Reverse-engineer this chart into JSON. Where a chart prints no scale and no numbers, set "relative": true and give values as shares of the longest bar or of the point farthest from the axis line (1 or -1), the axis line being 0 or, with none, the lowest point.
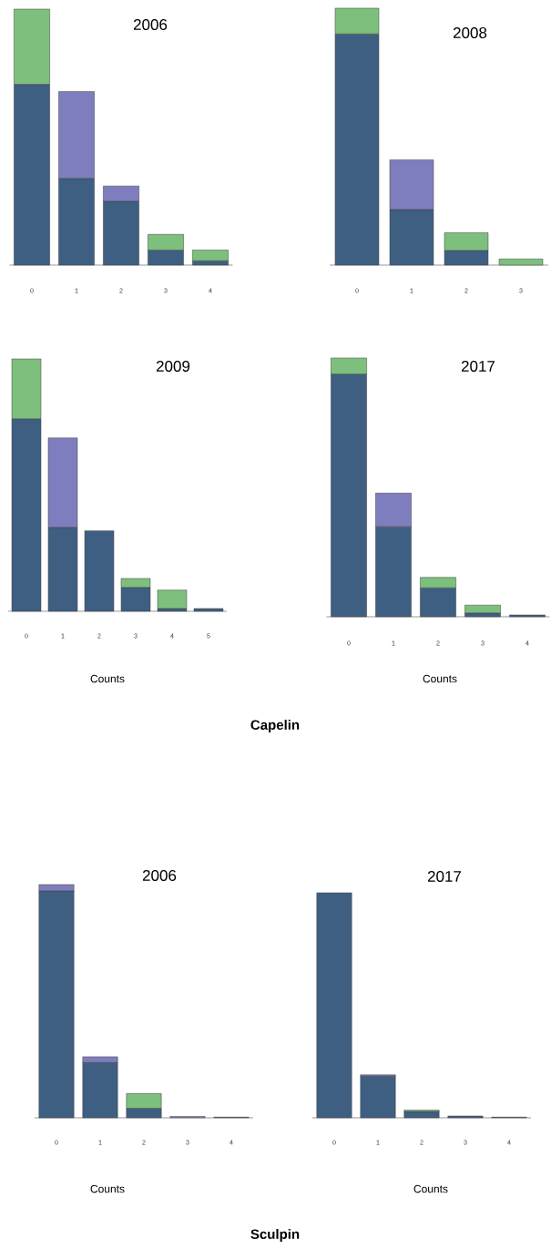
{
  "chart_data": [
    {
      "type": "bar",
      "stacked": true,
      "relative": true,
      "title": "2006",
      "categories": [
        "0",
        "1",
        "2",
        "3",
        "4"
      ],
      "series": [
        {
          "color": "#3e5f82",
          "values": [
            0.706,
            0.339,
            0.25,
            0.059,
            0.017
          ]
        },
        {
          "color": "#7e7dbd",
          "values": [
            null,
            0.339,
            0.059,
            null,
            null
          ]
        },
        {
          "color": "#7dbf7d",
          "values": [
            0.294,
            null,
            null,
            0.061,
            0.042
          ]
        }
      ]
    },
    {
      "type": "bar",
      "stacked": true,
      "relative": true,
      "title": "2008",
      "categories": [
        "0",
        "1",
        "2",
        "3"
      ],
      "series": [
        {
          "color": "#3e5f82",
          "values": [
            0.9,
            0.216,
            0.057,
            null
          ]
        },
        {
          "color": "#7e7dbd",
          "values": [
            null,
            0.194,
            null,
            null
          ]
        },
        {
          "color": "#7dbf7d",
          "values": [
            0.1,
            null,
            0.069,
            0.024
          ]
        }
      ]
    },
    {
      "type": "bar",
      "stacked": true,
      "relative": true,
      "title": "2009",
      "xlabel": "Counts",
      "categories": [
        "0",
        "1",
        "2",
        "3",
        "4",
        "5"
      ],
      "series": [
        {
          "color": "#3e5f82",
          "values": [
            0.763,
            0.333,
            0.319,
            0.095,
            0.011,
            0.011
          ]
        },
        {
          "color": "#7e7dbd",
          "values": [
            null,
            0.354,
            null,
            null,
            null,
            null
          ]
        },
        {
          "color": "#7dbf7d",
          "values": [
            0.237,
            null,
            null,
            0.035,
            0.073,
            null
          ]
        }
      ]
    },
    {
      "type": "bar",
      "stacked": true,
      "relative": true,
      "title": "2017",
      "xlabel": "Counts",
      "annotations": [
        "Capelin"
      ],
      "categories": [
        "0",
        "1",
        "2",
        "3",
        "4"
      ],
      "series": [
        {
          "color": "#3e5f82",
          "values": [
            0.938,
            0.348,
            0.112,
            0.015,
            0.007
          ]
        },
        {
          "color": "#7e7dbd",
          "values": [
            null,
            0.13,
            null,
            null,
            null
          ]
        },
        {
          "color": "#7dbf7d",
          "values": [
            0.062,
            null,
            0.04,
            0.03,
            null
          ]
        }
      ]
    },
    {
      "type": "bar",
      "stacked": true,
      "relative": true,
      "title": "2006",
      "xlabel": "Counts",
      "categories": [
        "0",
        "1",
        "2",
        "3",
        "4"
      ],
      "series": [
        {
          "color": "#3e5f82",
          "values": [
            0.973,
            0.237,
            0.041,
            null,
            0.003
          ]
        },
        {
          "color": "#7e7dbd",
          "values": [
            0.027,
            0.025,
            null,
            0.006,
            null
          ]
        },
        {
          "color": "#7dbf7d",
          "values": [
            null,
            null,
            0.063,
            null,
            null
          ]
        }
      ]
    },
    {
      "type": "bar",
      "stacked": true,
      "relative": true,
      "title": "2017",
      "xlabel": "Counts",
      "annotations": [
        "Sculpin"
      ],
      "categories": [
        "0",
        "1",
        "2",
        "3",
        "4"
      ],
      "series": [
        {
          "color": "#3e5f82",
          "values": [
            1.0,
            0.185,
            0.028,
            0.008,
            0.003
          ]
        },
        {
          "color": "#7e7dbd",
          "values": [
            null,
            0.006,
            null,
            null,
            null
          ]
        },
        {
          "color": "#7dbf7d",
          "values": [
            null,
            null,
            0.006,
            null,
            null
          ]
        }
      ]
    }
  ]
}
